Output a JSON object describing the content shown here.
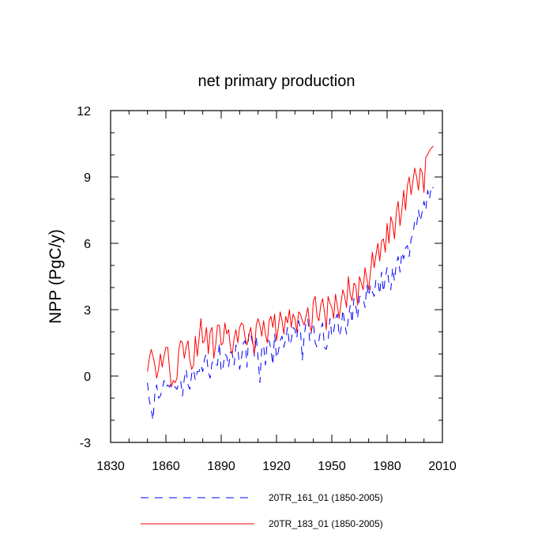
{
  "chart_data": {
    "type": "line",
    "title": "net primary production",
    "xlabel": "",
    "ylabel": "NPP  (PgC/y)",
    "xlim": [
      1830,
      2010
    ],
    "ylim": [
      -3,
      12
    ],
    "x_ticks": [
      "1830",
      "1860",
      "1890",
      "1920",
      "1950",
      "1980",
      "2010"
    ],
    "y_ticks": [
      "-3",
      "0",
      "3",
      "6",
      "9",
      "12"
    ],
    "legend_position": "bottom",
    "series": [
      {
        "name": "20TR_161_01 (1850-2005)",
        "color": "#0000ff",
        "dash": "dashed",
        "x": [
          1850,
          1851,
          1852,
          1853,
          1854,
          1855,
          1856,
          1857,
          1858,
          1859,
          1860,
          1861,
          1862,
          1863,
          1864,
          1865,
          1866,
          1867,
          1868,
          1869,
          1870,
          1871,
          1872,
          1873,
          1874,
          1875,
          1876,
          1877,
          1878,
          1879,
          1880,
          1881,
          1882,
          1883,
          1884,
          1885,
          1886,
          1887,
          1888,
          1889,
          1890,
          1891,
          1892,
          1893,
          1894,
          1895,
          1896,
          1897,
          1898,
          1899,
          1900,
          1901,
          1902,
          1903,
          1904,
          1905,
          1906,
          1907,
          1908,
          1909,
          1910,
          1911,
          1912,
          1913,
          1914,
          1915,
          1916,
          1917,
          1918,
          1919,
          1920,
          1921,
          1922,
          1923,
          1924,
          1925,
          1926,
          1927,
          1928,
          1929,
          1930,
          1931,
          1932,
          1933,
          1934,
          1935,
          1936,
          1937,
          1938,
          1939,
          1940,
          1941,
          1942,
          1943,
          1944,
          1945,
          1946,
          1947,
          1948,
          1949,
          1950,
          1951,
          1952,
          1953,
          1954,
          1955,
          1956,
          1957,
          1958,
          1959,
          1960,
          1961,
          1962,
          1963,
          1964,
          1965,
          1966,
          1967,
          1968,
          1969,
          1970,
          1971,
          1972,
          1973,
          1974,
          1975,
          1976,
          1977,
          1978,
          1979,
          1980,
          1981,
          1982,
          1983,
          1984,
          1985,
          1986,
          1987,
          1988,
          1989,
          1990,
          1991,
          1992,
          1993,
          1994,
          1995,
          1996,
          1997,
          1998,
          1999,
          2000,
          2001,
          2002,
          2003,
          2004,
          2005
        ],
        "values": [
          -0.3,
          -1.1,
          -1.5,
          -2.0,
          -0.8,
          -0.4,
          -1.0,
          -0.9,
          -0.6,
          -0.2,
          -0.5,
          -0.4,
          -0.5,
          -0.3,
          -0.4,
          -0.5,
          -0.6,
          -0.3,
          -0.2,
          -0.9,
          -0.1,
          0.3,
          -0.4,
          -0.6,
          0.1,
          0.3,
          -0.2,
          0.2,
          0.2,
          0.5,
          0.2,
          0.8,
          1.0,
          0.2,
          -0.1,
          0.6,
          0.7,
          0.5,
          0.5,
          1.5,
          0.2,
          0.4,
          1.0,
          0.9,
          0.4,
          1.1,
          1.0,
          0.5,
          1.4,
          1.3,
          0.3,
          0.8,
          1.5,
          1.6,
          0.4,
          2.0,
          1.9,
          1.5,
          0.9,
          1.8,
          0.8,
          -0.3,
          1.3,
          1.4,
          0.5,
          1.6,
          1.6,
          1.2,
          0.5,
          1.9,
          0.8,
          1.1,
          1.6,
          1.8,
          1.3,
          1.7,
          2.2,
          1.4,
          1.6,
          2.2,
          2.1,
          1.7,
          2.5,
          2.1,
          0.7,
          1.8,
          2.4,
          2.6,
          1.6,
          2.1,
          2.4,
          1.5,
          1.3,
          1.6,
          2.1,
          2.4,
          1.3,
          1.2,
          1.6,
          2.6,
          1.8,
          2.0,
          2.6,
          2.8,
          1.8,
          2.1,
          3.0,
          2.4,
          1.9,
          2.6,
          3.2,
          2.4,
          3.5,
          3.2,
          2.6,
          3.6,
          3.6,
          3.5,
          3.1,
          4.1,
          3.6,
          4.1,
          3.8,
          3.6,
          4.4,
          4.3,
          3.7,
          4.7,
          3.8,
          4.4,
          4.9,
          4.2,
          3.9,
          4.9,
          4.3,
          5.1,
          5.4,
          4.7,
          5.6,
          5.3,
          5.8,
          5.9,
          5.4,
          6.2,
          6.4,
          7.0,
          6.8,
          7.5,
          7.0,
          7.4,
          7.9,
          7.5,
          8.4,
          8.0,
          8.6,
          8.5
        ]
      },
      {
        "name": "20TR_183_01 (1850-2005)",
        "color": "#ff0000",
        "dash": "solid",
        "x": [
          1850,
          1851,
          1852,
          1853,
          1854,
          1855,
          1856,
          1857,
          1858,
          1859,
          1860,
          1861,
          1862,
          1863,
          1864,
          1865,
          1866,
          1867,
          1868,
          1869,
          1870,
          1871,
          1872,
          1873,
          1874,
          1875,
          1876,
          1877,
          1878,
          1879,
          1880,
          1881,
          1882,
          1883,
          1884,
          1885,
          1886,
          1887,
          1888,
          1889,
          1890,
          1891,
          1892,
          1893,
          1894,
          1895,
          1896,
          1897,
          1898,
          1899,
          1900,
          1901,
          1902,
          1903,
          1904,
          1905,
          1906,
          1907,
          1908,
          1909,
          1910,
          1911,
          1912,
          1913,
          1914,
          1915,
          1916,
          1917,
          1918,
          1919,
          1920,
          1921,
          1922,
          1923,
          1924,
          1925,
          1926,
          1927,
          1928,
          1929,
          1930,
          1931,
          1932,
          1933,
          1934,
          1935,
          1936,
          1937,
          1938,
          1939,
          1940,
          1941,
          1942,
          1943,
          1944,
          1945,
          1946,
          1947,
          1948,
          1949,
          1950,
          1951,
          1952,
          1953,
          1954,
          1955,
          1956,
          1957,
          1958,
          1959,
          1960,
          1961,
          1962,
          1963,
          1964,
          1965,
          1966,
          1967,
          1968,
          1969,
          1970,
          1971,
          1972,
          1973,
          1974,
          1975,
          1976,
          1977,
          1978,
          1979,
          1980,
          1981,
          1982,
          1983,
          1984,
          1985,
          1986,
          1987,
          1988,
          1989,
          1990,
          1991,
          1992,
          1993,
          1994,
          1995,
          1996,
          1997,
          1998,
          1999,
          2000,
          2001,
          2002,
          2003,
          2004,
          2005
        ],
        "values": [
          0.2,
          0.8,
          1.2,
          0.9,
          0.5,
          -0.1,
          0.3,
          1.0,
          0.4,
          0.9,
          1.3,
          1.3,
          0.3,
          -0.5,
          -0.2,
          -0.3,
          -0.1,
          1.2,
          1.6,
          1.5,
          0.8,
          1.3,
          1.6,
          0.7,
          0.3,
          0.5,
          1.8,
          0.9,
          1.7,
          2.6,
          1.5,
          1.6,
          2.2,
          1.0,
          2.0,
          2.2,
          0.8,
          1.4,
          2.3,
          2.3,
          1.4,
          1.5,
          2.4,
          1.9,
          2.1,
          1.3,
          1.0,
          1.7,
          2.1,
          1.5,
          2.2,
          2.4,
          2.3,
          1.7,
          1.4,
          1.8,
          2.2,
          1.6,
          1.0,
          2.3,
          2.6,
          2.3,
          1.8,
          2.5,
          1.9,
          1.5,
          2.5,
          2.7,
          2.2,
          2.8,
          1.6,
          2.2,
          2.9,
          2.5,
          1.9,
          2.7,
          2.4,
          3.0,
          2.2,
          2.8,
          2.6,
          2.0,
          2.9,
          2.8,
          2.5,
          2.3,
          2.7,
          3.1,
          2.3,
          2.0,
          3.4,
          3.6,
          2.7,
          2.5,
          3.2,
          3.5,
          2.9,
          2.1,
          3.6,
          3.3,
          3.1,
          2.6,
          3.7,
          3.2,
          2.6,
          3.3,
          3.9,
          3.6,
          3.1,
          4.5,
          3.7,
          3.4,
          4.2,
          4.1,
          3.2,
          4.5,
          4.2,
          3.9,
          4.9,
          4.4,
          3.9,
          4.7,
          5.6,
          4.9,
          5.5,
          6.0,
          5.2,
          6.1,
          6.2,
          5.6,
          6.9,
          6.0,
          7.2,
          6.9,
          6.2,
          7.4,
          7.9,
          6.8,
          7.5,
          8.4,
          7.5,
          8.6,
          9.0,
          8.2,
          8.8,
          9.4,
          9.0,
          8.4,
          9.4,
          9.2,
          8.3,
          9.9,
          10.0,
          10.2,
          10.3,
          10.4
        ]
      }
    ]
  }
}
